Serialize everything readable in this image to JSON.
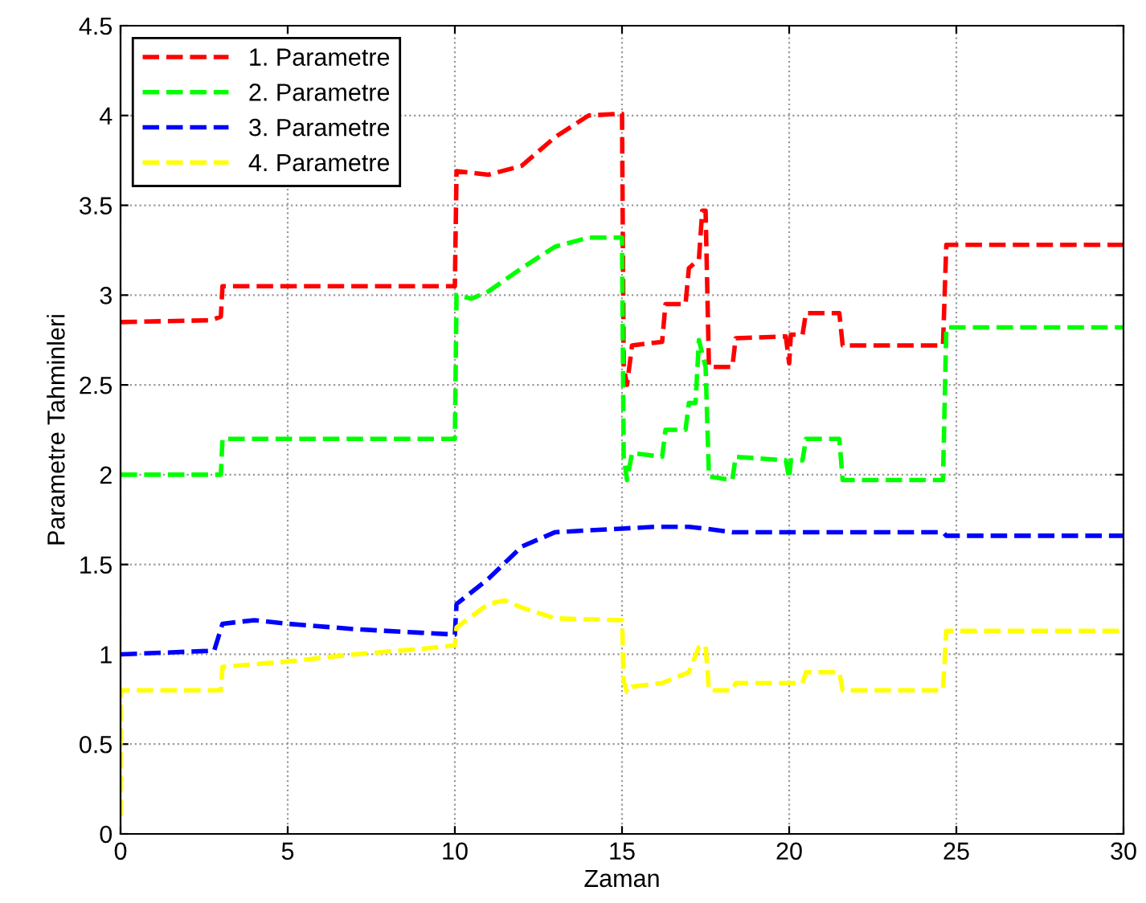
{
  "chart_data": {
    "type": "line",
    "xlabel": "Zaman",
    "ylabel": "Parametre Tahminleri",
    "xlim": [
      0,
      30
    ],
    "ylim": [
      0,
      4.5
    ],
    "xticks": [
      0,
      5,
      10,
      15,
      20,
      25,
      30
    ],
    "yticks": [
      0,
      0.5,
      1,
      1.5,
      2,
      2.5,
      3,
      3.5,
      4,
      4.5
    ],
    "grid": true,
    "legend": "top left",
    "line_style": "dashed",
    "marker": "none",
    "series": [
      {
        "name": "1. Parametre",
        "color": "#ff0000",
        "x": [
          0,
          2.7,
          3,
          3.05,
          10,
          10.05,
          11,
          12,
          13,
          14,
          15,
          15.05,
          15.15,
          15.3,
          16.2,
          16.3,
          16.9,
          17,
          17.3,
          17.4,
          17.5,
          17.6,
          18.3,
          18.4,
          19.9,
          20,
          20.05,
          20.4,
          20.5,
          21.5,
          21.6,
          24.6,
          24.7,
          30
        ],
        "values": [
          2.85,
          2.86,
          2.88,
          3.05,
          3.05,
          3.69,
          3.67,
          3.72,
          3.88,
          4.0,
          4.01,
          2.6,
          2.5,
          2.72,
          2.74,
          2.95,
          2.95,
          3.15,
          3.2,
          3.47,
          3.47,
          2.6,
          2.6,
          2.76,
          2.77,
          2.62,
          2.78,
          2.78,
          2.9,
          2.9,
          2.72,
          2.72,
          3.28,
          3.28
        ]
      },
      {
        "name": "2. Parametre",
        "color": "#00ff00",
        "x": [
          0,
          3,
          3.05,
          10,
          10.05,
          10.5,
          11,
          12,
          13,
          14,
          15,
          15.05,
          15.15,
          15.3,
          16.2,
          16.3,
          16.9,
          17,
          17.2,
          17.3,
          17.5,
          17.6,
          18.3,
          18.4,
          19.9,
          20,
          20.05,
          20.4,
          20.5,
          21.5,
          21.6,
          24.6,
          24.7,
          30
        ],
        "values": [
          2.0,
          2.0,
          2.2,
          2.2,
          3.0,
          2.98,
          3.02,
          3.15,
          3.27,
          3.32,
          3.32,
          2.1,
          1.97,
          2.12,
          2.1,
          2.25,
          2.25,
          2.4,
          2.4,
          2.75,
          2.6,
          1.99,
          1.97,
          2.1,
          2.08,
          1.98,
          2.08,
          2.08,
          2.2,
          2.2,
          1.97,
          1.97,
          2.82,
          2.82
        ]
      },
      {
        "name": "3. Parametre",
        "color": "#0000ff",
        "x": [
          0,
          2.8,
          3.05,
          4,
          5,
          7,
          9,
          10,
          10.05,
          11,
          12,
          13,
          14,
          15,
          16,
          17,
          17.5,
          18.3,
          20,
          24.6,
          24.7,
          30
        ],
        "values": [
          1.0,
          1.02,
          1.17,
          1.19,
          1.17,
          1.14,
          1.12,
          1.11,
          1.28,
          1.42,
          1.6,
          1.68,
          1.69,
          1.7,
          1.71,
          1.71,
          1.7,
          1.68,
          1.68,
          1.68,
          1.66,
          1.66
        ]
      },
      {
        "name": "4. Parametre",
        "color": "#ffff00",
        "x": [
          0,
          0,
          3,
          3.05,
          5,
          7,
          9,
          10,
          10.05,
          11,
          11.5,
          12,
          13,
          15,
          15.05,
          15.15,
          15.3,
          16.2,
          17,
          17.3,
          17.5,
          17.6,
          18.3,
          18.4,
          19.9,
          20.4,
          20.5,
          21.5,
          21.6,
          24.6,
          24.7,
          30
        ],
        "values": [
          0.1,
          0.8,
          0.8,
          0.93,
          0.96,
          1.0,
          1.03,
          1.05,
          1.15,
          1.28,
          1.3,
          1.26,
          1.2,
          1.19,
          0.85,
          0.79,
          0.82,
          0.84,
          0.9,
          1.04,
          1.05,
          0.8,
          0.8,
          0.84,
          0.84,
          0.84,
          0.9,
          0.9,
          0.8,
          0.8,
          1.13,
          1.13
        ]
      }
    ]
  }
}
